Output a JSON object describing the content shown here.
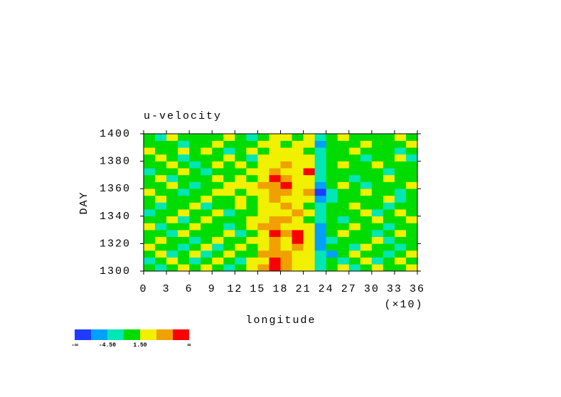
{
  "chart_data": {
    "type": "heatmap",
    "title": "u-velocity",
    "x_label": "longitude",
    "x_unit": "(×10)",
    "y_label": "DAY",
    "xlim": [
      0,
      36
    ],
    "xticks": [
      0,
      3,
      6,
      9,
      12,
      15,
      18,
      21,
      24,
      27,
      30,
      33,
      36
    ],
    "ylim": [
      1300,
      1400
    ],
    "yticks": [
      1300,
      1320,
      1340,
      1360,
      1380,
      1400
    ],
    "x": [
      0.75,
      2.25,
      3.75,
      5.25,
      6.75,
      8.25,
      9.75,
      11.25,
      12.75,
      14.25,
      15.75,
      17.25,
      18.75,
      20.25,
      21.75,
      23.25,
      24.75,
      26.25,
      27.75,
      29.25,
      30.75,
      32.25,
      33.75,
      35.25
    ],
    "y": [
      1302.5,
      1307.5,
      1312.5,
      1317.5,
      1322.5,
      1327.5,
      1332.5,
      1337.5,
      1342.5,
      1347.5,
      1352.5,
      1357.5,
      1362.5,
      1367.5,
      1372.5,
      1377.5,
      1382.5,
      1387.5,
      1392.5,
      1397.5
    ],
    "z": [
      [
        1,
        -2,
        0,
        2,
        -1,
        3,
        0,
        -2,
        1,
        2,
        5,
        9,
        6,
        3,
        2,
        -3,
        0,
        2,
        -2,
        1,
        3,
        0,
        -1,
        2
      ],
      [
        -2,
        0,
        3,
        -1,
        -4,
        0,
        2,
        1,
        -2,
        3,
        4,
        8,
        5,
        2,
        3,
        -4,
        1,
        -3,
        0,
        2,
        -2,
        1,
        3,
        0
      ],
      [
        0,
        3,
        -2,
        1,
        2,
        -3,
        0,
        2,
        1,
        -1,
        5,
        6,
        7,
        4,
        2,
        -2,
        -5,
        0,
        2,
        -1,
        0,
        -3,
        1,
        2
      ],
      [
        2,
        -1,
        0,
        -3,
        1,
        2,
        -2,
        0,
        3,
        1,
        3,
        5,
        4,
        6,
        3,
        -5,
        0,
        1,
        -2,
        3,
        1,
        0,
        -2,
        -1
      ],
      [
        -1,
        2,
        1,
        0,
        -2,
        0,
        3,
        -1,
        0,
        2,
        4,
        7,
        3,
        9,
        2,
        -6,
        -2,
        0,
        1,
        -1,
        2,
        -4,
        0,
        1
      ],
      [
        1,
        0,
        -3,
        2,
        0,
        1,
        -1,
        2,
        -2,
        0,
        3,
        9,
        5,
        8,
        3,
        -5,
        1,
        2,
        -1,
        0,
        -3,
        1,
        2,
        0
      ],
      [
        3,
        -2,
        0,
        1,
        2,
        -1,
        0,
        -3,
        1,
        2,
        5,
        6,
        4,
        3,
        2,
        -7,
        -1,
        0,
        2,
        1,
        0,
        -2,
        1,
        -1
      ],
      [
        0,
        1,
        2,
        -2,
        0,
        3,
        1,
        0,
        -1,
        3,
        4,
        5,
        6,
        2,
        1,
        -4,
        0,
        -2,
        1,
        -1,
        2,
        0,
        -1,
        3
      ],
      [
        -2,
        0,
        1,
        3,
        -1,
        0,
        2,
        -2,
        0,
        1,
        3,
        4,
        3,
        5,
        2,
        -3,
        -1,
        1,
        0,
        2,
        -2,
        1,
        3,
        0
      ],
      [
        1,
        -3,
        0,
        0,
        2,
        -2,
        0,
        1,
        3,
        -1,
        2,
        4,
        5,
        3,
        1,
        -4,
        0,
        -1,
        2,
        0,
        1,
        -2,
        0,
        1
      ],
      [
        0,
        2,
        -1,
        1,
        0,
        3,
        -1,
        0,
        2,
        1,
        3,
        5,
        4,
        2,
        3,
        -5,
        -2,
        0,
        1,
        -1,
        0,
        2,
        -3,
        0
      ],
      [
        2,
        -1,
        1,
        -2,
        0,
        1,
        3,
        2,
        0,
        3,
        4,
        6,
        7,
        3,
        5,
        -8,
        -3,
        0,
        -1,
        2,
        1,
        0,
        -2,
        -1
      ],
      [
        -1,
        0,
        2,
        0,
        -3,
        0,
        1,
        3,
        2,
        4,
        5,
        7,
        8,
        3,
        4,
        -6,
        -1,
        2,
        0,
        -2,
        1,
        -1,
        0,
        2
      ],
      [
        0,
        2,
        -2,
        1,
        0,
        -1,
        2,
        0,
        3,
        1,
        4,
        9,
        6,
        2,
        3,
        -4,
        0,
        1,
        -2,
        0,
        -1,
        2,
        1,
        0
      ],
      [
        -3,
        1,
        0,
        2,
        1,
        -2,
        0,
        1,
        -1,
        4,
        3,
        5,
        3,
        2,
        8,
        -2,
        1,
        -1,
        0,
        1,
        0,
        -2,
        1,
        -1
      ],
      [
        1,
        -1,
        2,
        0,
        -2,
        1,
        3,
        0,
        2,
        1,
        3,
        4,
        5,
        3,
        2,
        -3,
        0,
        2,
        -1,
        0,
        2,
        0,
        -1,
        1
      ],
      [
        0,
        2,
        -1,
        -2,
        1,
        0,
        -1,
        2,
        0,
        -2,
        2,
        3,
        4,
        2,
        3,
        -4,
        -1,
        0,
        1,
        -2,
        0,
        1,
        2,
        -3
      ],
      [
        2,
        0,
        1,
        3,
        -1,
        2,
        0,
        -2,
        1,
        2,
        1,
        4,
        2,
        3,
        1,
        -2,
        0,
        -1,
        2,
        1,
        -1,
        0,
        -2,
        0
      ],
      [
        -1,
        1,
        0,
        -2,
        0,
        1,
        2,
        0,
        -1,
        0,
        2,
        3,
        1,
        2,
        4,
        -5,
        1,
        0,
        -1,
        2,
        0,
        1,
        0,
        2
      ],
      [
        1,
        -2,
        2,
        0,
        1,
        -1,
        0,
        3,
        0,
        -2,
        1,
        2,
        3,
        1,
        2,
        -3,
        0,
        2,
        0,
        -1,
        1,
        -1,
        2,
        0
      ]
    ],
    "levels": [
      -7.5,
      -4.5,
      -1.5,
      1.5,
      4.5,
      7.5
    ],
    "colors": [
      "#1e3cff",
      "#00a0ff",
      "#00e6b4",
      "#00dc00",
      "#f0f000",
      "#f0a000",
      "#fa0000"
    ],
    "colorbar_ticks": [
      {
        "value": -4.5,
        "label": "-4.50"
      },
      {
        "value": 1.5,
        "label": "1.50"
      }
    ],
    "colorbar_ends": [
      "-∞",
      "∞"
    ]
  }
}
